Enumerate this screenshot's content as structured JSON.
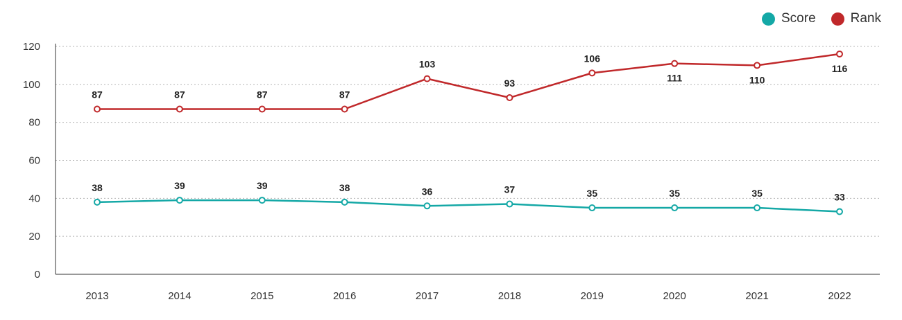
{
  "chart_data": {
    "type": "line",
    "title": "",
    "xlabel": "",
    "ylabel": "",
    "categories": [
      "2013",
      "2014",
      "2015",
      "2016",
      "2017",
      "2018",
      "2019",
      "2020",
      "2021",
      "2022"
    ],
    "ylim": [
      0,
      120
    ],
    "yticks": [
      0,
      20,
      40,
      60,
      80,
      100,
      120
    ],
    "grid": true,
    "legend_position": "top-right",
    "series": [
      {
        "name": "Score",
        "color": "#14A8A6",
        "values": [
          38,
          39,
          39,
          38,
          36,
          37,
          35,
          35,
          35,
          33
        ],
        "label_position": "above"
      },
      {
        "name": "Rank",
        "color": "#C0282A",
        "values": [
          87,
          87,
          87,
          87,
          103,
          93,
          106,
          111,
          110,
          116
        ],
        "label_position": [
          "above",
          "above",
          "above",
          "above",
          "above",
          "above",
          "above",
          "below",
          "below",
          "below"
        ]
      }
    ]
  }
}
